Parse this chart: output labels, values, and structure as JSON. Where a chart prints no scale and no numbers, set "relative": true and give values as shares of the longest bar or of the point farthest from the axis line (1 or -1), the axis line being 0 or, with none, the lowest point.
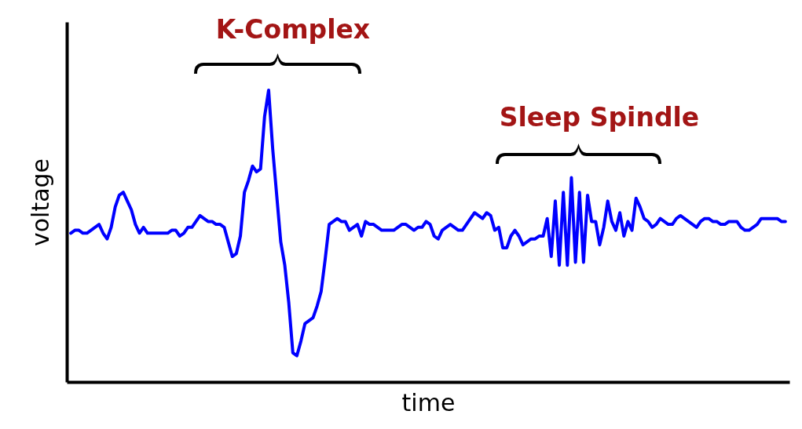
{
  "chart_data": {
    "type": "line",
    "xlabel": "time",
    "ylabel": "voltage",
    "relative": true,
    "annotations": [
      "K-Complex",
      "Sleep Spindle"
    ],
    "categories": [
      null,
      null,
      null,
      null,
      null,
      null,
      null,
      null,
      null,
      null,
      null,
      null,
      null,
      null,
      null,
      null,
      null,
      null,
      null,
      null,
      null,
      null,
      null,
      null,
      null,
      null,
      null,
      null,
      null,
      null,
      null,
      null,
      null,
      null,
      null,
      null,
      null,
      null,
      null,
      null,
      null,
      null,
      null,
      null,
      null,
      null,
      null,
      null,
      null,
      null,
      null,
      null,
      null,
      null,
      null,
      null,
      null,
      null,
      null,
      null,
      null,
      null,
      null,
      null,
      null,
      null,
      null,
      null,
      null,
      null,
      null,
      null,
      null,
      null,
      null,
      null,
      null,
      null,
      null,
      null,
      null,
      null,
      null,
      null,
      null,
      null,
      null,
      null,
      null,
      null,
      null,
      null,
      null,
      null,
      null,
      null,
      null,
      null,
      null,
      null,
      null,
      null,
      null,
      null,
      null,
      null,
      null,
      null,
      null,
      null,
      null,
      null,
      null,
      null,
      null,
      null,
      null,
      null,
      null,
      null,
      null,
      null,
      null,
      null,
      null,
      null,
      null,
      null,
      null,
      null,
      null,
      null,
      null,
      null,
      null,
      null,
      null,
      null,
      null,
      null,
      null,
      null,
      null,
      null,
      null,
      null,
      null,
      null,
      null,
      null,
      null,
      null,
      null,
      null,
      null,
      null,
      null,
      null,
      null,
      null,
      null,
      null,
      null,
      null,
      null,
      null,
      null,
      null,
      null,
      null,
      null,
      null,
      null,
      null,
      null,
      null,
      null,
      null
    ],
    "series": [
      {
        "color": "#0000ff",
        "values": [
          0.51,
          0.52,
          0.52,
          0.51,
          0.51,
          0.52,
          0.53,
          0.54,
          0.51,
          0.49,
          0.53,
          0.6,
          0.64,
          0.65,
          0.62,
          0.59,
          0.54,
          0.51,
          0.53,
          0.51,
          0.51,
          0.51,
          0.51,
          0.51,
          0.51,
          0.52,
          0.52,
          0.5,
          0.51,
          0.53,
          0.53,
          0.55,
          0.57,
          0.56,
          0.55,
          0.55,
          0.54,
          0.54,
          0.53,
          0.48,
          0.43,
          0.44,
          0.5,
          0.65,
          0.69,
          0.74,
          0.72,
          0.73,
          0.91,
          1.0,
          0.8,
          0.64,
          0.48,
          0.4,
          0.27,
          0.1,
          0.09,
          0.14,
          0.2,
          0.21,
          0.22,
          0.26,
          0.31,
          0.42,
          0.54,
          0.55,
          0.56,
          0.55,
          0.55,
          0.52,
          0.53,
          0.54,
          0.5,
          0.55,
          0.54,
          0.54,
          0.53,
          0.52,
          0.52,
          0.52,
          0.52,
          0.53,
          0.54,
          0.54,
          0.53,
          0.52,
          0.53,
          0.53,
          0.55,
          0.54,
          0.5,
          0.49,
          0.52,
          0.53,
          0.54,
          0.53,
          0.52,
          0.52,
          0.54,
          0.56,
          0.58,
          0.57,
          0.56,
          0.58,
          0.57,
          0.52,
          0.53,
          0.46,
          0.46,
          0.5,
          0.52,
          0.5,
          0.47,
          0.48,
          0.49,
          0.49,
          0.5,
          0.5,
          0.56,
          0.43,
          0.62,
          0.4,
          0.65,
          0.4,
          0.7,
          0.41,
          0.65,
          0.41,
          0.64,
          0.55,
          0.55,
          0.47,
          0.53,
          0.62,
          0.55,
          0.52,
          0.58,
          0.5,
          0.55,
          0.52,
          0.63,
          0.6,
          0.56,
          0.55,
          0.53,
          0.54,
          0.56,
          0.55,
          0.54,
          0.54,
          0.56,
          0.57,
          0.56,
          0.55,
          0.54,
          0.53,
          0.55,
          0.56,
          0.56,
          0.55,
          0.55,
          0.54,
          0.54,
          0.55,
          0.55,
          0.55,
          0.53,
          0.52,
          0.52,
          0.53,
          0.54,
          0.56,
          0.56,
          0.56,
          0.56,
          0.56,
          0.55,
          0.55
        ]
      }
    ]
  }
}
